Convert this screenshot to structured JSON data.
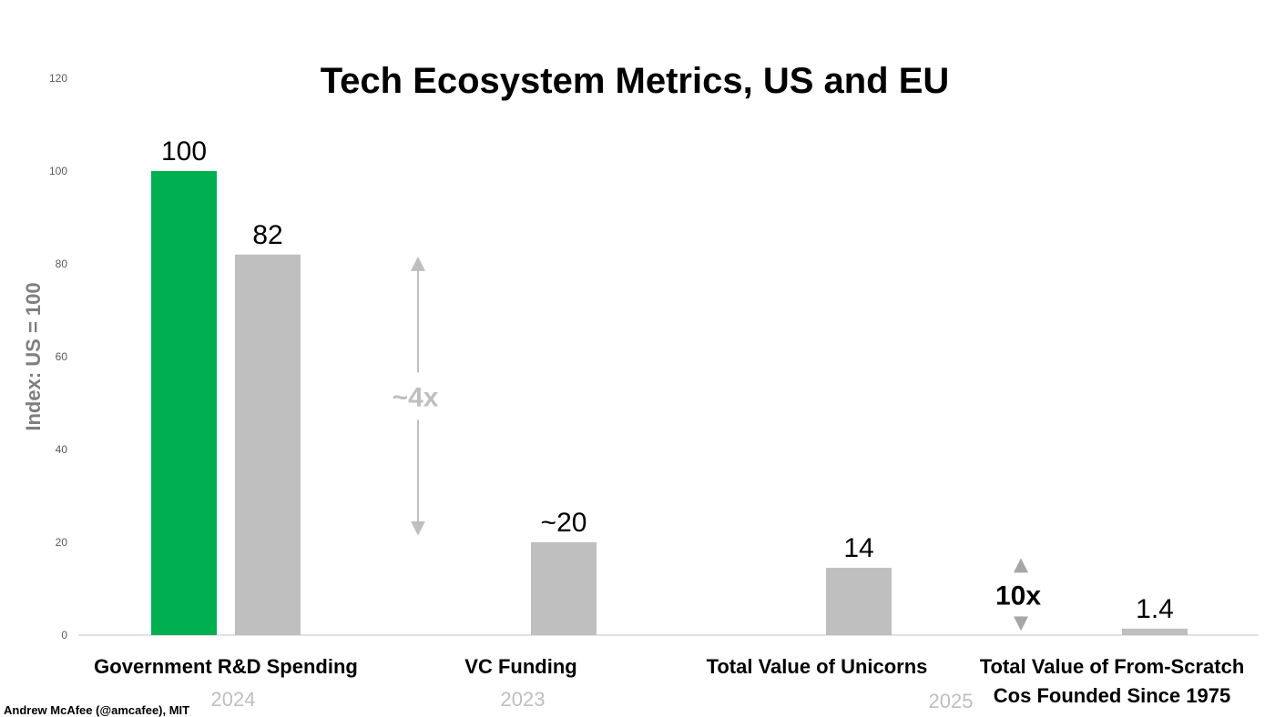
{
  "chart_data": {
    "type": "bar",
    "title": "Tech Ecosystem Metrics, US and EU",
    "ylabel": "Index: US = 100",
    "ylim": [
      0,
      120
    ],
    "yticks": [
      0,
      20,
      40,
      60,
      80,
      100,
      120
    ],
    "grid": false,
    "colors": {
      "us": "#00b050",
      "eu": "#bfbfbf"
    },
    "categories": [
      {
        "label": "Government R&D Spending",
        "year": "2024"
      },
      {
        "label": "VC Funding",
        "year": "2023"
      },
      {
        "label": "Total Value of Unicorns",
        "year": ""
      },
      {
        "label": [
          "Total Value of From-Scratch",
          "Cos Founded Since 1975"
        ],
        "year": "2025"
      }
    ],
    "bars": [
      {
        "category": 0,
        "value": 100,
        "label": "100",
        "color": "#00b050"
      },
      {
        "category": 0,
        "value": 82,
        "label": "82",
        "color": "#bfbfbf"
      },
      {
        "category": 1,
        "value": 20,
        "label": "~20",
        "color": "#bfbfbf"
      },
      {
        "category": 2,
        "value": 14.5,
        "label": "14",
        "color": "#bfbfbf"
      },
      {
        "category": 3,
        "value": 1.4,
        "label": "1.4",
        "color": "#bfbfbf"
      }
    ],
    "annotations": [
      {
        "text": "~4x",
        "from": 22,
        "to": 81,
        "style": "gray"
      },
      {
        "text": "10x",
        "from": 1.5,
        "to": 16,
        "style": "black"
      }
    ]
  },
  "credit": "Andrew McAfee (@amcafee), MIT"
}
